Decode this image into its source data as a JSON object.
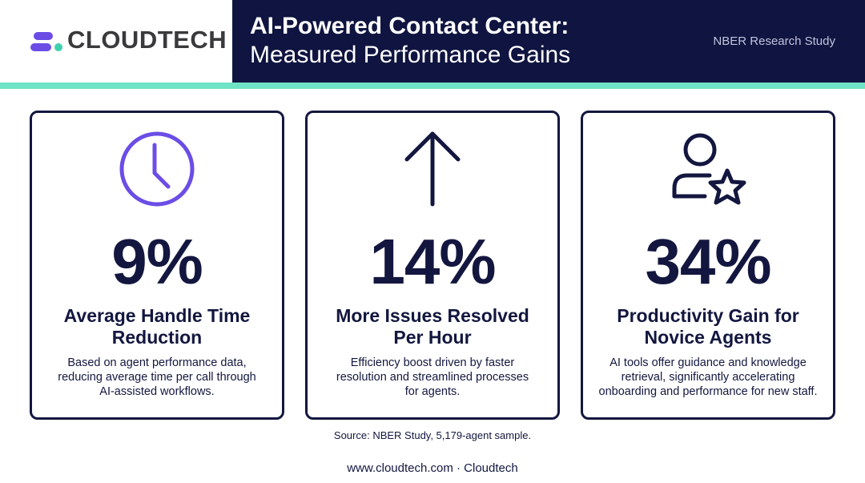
{
  "brand": {
    "name": "CLOUDTECH",
    "colors": {
      "navy": "#0f1440",
      "accent": "#6fe3c5",
      "logo_purple": "#6b4de6",
      "logo_teal": "#3fd0b0"
    }
  },
  "header": {
    "title_line1": "AI-Powered Contact Center:",
    "title_line2": "Measured Performance Gains",
    "study_tag": "NBER Research Study"
  },
  "cards": [
    {
      "icon": "clock-icon",
      "stat": "9%",
      "title": [
        "Average Handle Time",
        "Reduction"
      ],
      "description": [
        "Based on agent performance data,",
        "reducing average time per call through",
        "AI-assisted workflows."
      ]
    },
    {
      "icon": "arrow-up-icon",
      "stat": "14%",
      "title": [
        "More Issues Resolved",
        "Per Hour"
      ],
      "description": [
        "Efficiency boost driven by faster",
        "resolution and streamlined processes",
        "for agents."
      ]
    },
    {
      "icon": "user-star-icon",
      "stat": "34%",
      "title": [
        "Productivity Gain for",
        "Novice Agents"
      ],
      "description": [
        "AI tools offer guidance and knowledge",
        "retrieval, significantly accelerating",
        "onboarding and performance for new staff."
      ]
    }
  ],
  "source": "Source: NBER Study, 5,179-agent sample.",
  "footer": "www.cloudtech.com · Cloudtech"
}
